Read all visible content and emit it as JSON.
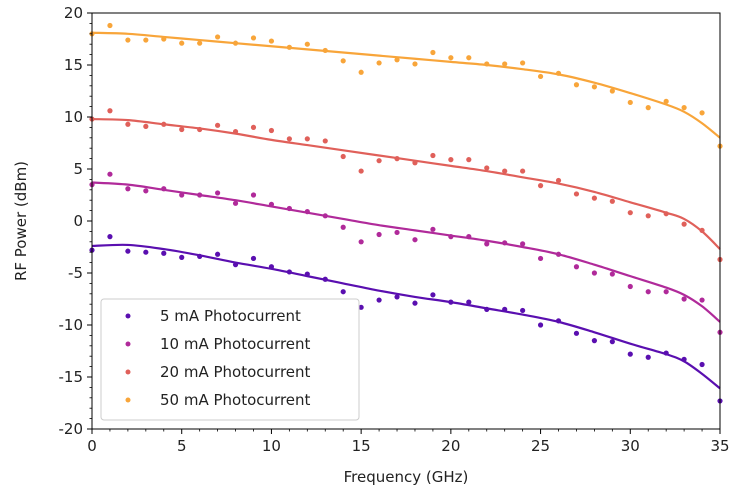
{
  "chart_data": {
    "type": "scatter",
    "xlabel": "Frequency (GHz)",
    "ylabel": "RF Power (dBm)",
    "xlim": [
      0,
      35
    ],
    "ylim": [
      -20,
      20
    ],
    "xticks": [
      0,
      5,
      10,
      15,
      20,
      25,
      30,
      35
    ],
    "yticks": [
      -20,
      -15,
      -10,
      -5,
      0,
      5,
      10,
      15,
      20
    ],
    "grid": false,
    "legend_placement": "lower-left",
    "series": [
      {
        "name": "5 mA Photocurrent",
        "color": "#5a0fb0",
        "x": [
          0,
          1,
          2,
          3,
          4,
          5,
          6,
          7,
          8,
          9,
          10,
          11,
          12,
          13,
          14,
          15,
          16,
          17,
          18,
          19,
          20,
          21,
          22,
          23,
          24,
          25,
          26,
          27,
          28,
          29,
          30,
          31,
          32,
          33,
          34,
          35
        ],
        "y": [
          -2.8,
          -1.5,
          -2.9,
          -3.0,
          -3.1,
          -3.5,
          -3.4,
          -3.2,
          -4.2,
          -3.6,
          -4.4,
          -4.9,
          -5.1,
          -5.6,
          -6.8,
          -8.3,
          -7.6,
          -7.3,
          -7.9,
          -7.1,
          -7.8,
          -7.8,
          -8.5,
          -8.5,
          -8.6,
          -10.0,
          -9.6,
          -10.8,
          -11.5,
          -11.6,
          -12.8,
          -13.1,
          -12.7,
          -13.3,
          -13.8,
          -17.3
        ],
        "fit": [
          [
            0,
            -2.4
          ],
          [
            2,
            -2.3
          ],
          [
            4,
            -2.7
          ],
          [
            6,
            -3.3
          ],
          [
            8,
            -4.0
          ],
          [
            10,
            -4.6
          ],
          [
            12,
            -5.3
          ],
          [
            14,
            -6.0
          ],
          [
            16,
            -6.7
          ],
          [
            18,
            -7.3
          ],
          [
            20,
            -7.8
          ],
          [
            22,
            -8.4
          ],
          [
            24,
            -9.0
          ],
          [
            26,
            -9.7
          ],
          [
            28,
            -10.7
          ],
          [
            30,
            -11.8
          ],
          [
            32,
            -12.8
          ],
          [
            33,
            -13.5
          ],
          [
            34,
            -14.7
          ],
          [
            35,
            -16.1
          ]
        ]
      },
      {
        "name": "10 mA Photocurrent",
        "color": "#b02a9a",
        "x": [
          0,
          1,
          2,
          3,
          4,
          5,
          6,
          7,
          8,
          9,
          10,
          11,
          12,
          13,
          14,
          15,
          16,
          17,
          18,
          19,
          20,
          21,
          22,
          23,
          24,
          25,
          26,
          27,
          28,
          29,
          30,
          31,
          32,
          33,
          34,
          35
        ],
        "y": [
          3.5,
          4.5,
          3.1,
          2.9,
          3.1,
          2.5,
          2.5,
          2.7,
          1.7,
          2.5,
          1.6,
          1.2,
          0.9,
          0.5,
          -0.6,
          -2.0,
          -1.3,
          -1.1,
          -1.8,
          -0.8,
          -1.5,
          -1.5,
          -2.2,
          -2.1,
          -2.2,
          -3.6,
          -3.2,
          -4.4,
          -5.0,
          -5.1,
          -6.3,
          -6.8,
          -6.8,
          -7.5,
          -7.6,
          -10.7
        ],
        "fit": [
          [
            0,
            3.7
          ],
          [
            2,
            3.5
          ],
          [
            4,
            3.0
          ],
          [
            6,
            2.5
          ],
          [
            8,
            2.0
          ],
          [
            10,
            1.4
          ],
          [
            12,
            0.8
          ],
          [
            14,
            0.2
          ],
          [
            16,
            -0.4
          ],
          [
            18,
            -0.9
          ],
          [
            20,
            -1.4
          ],
          [
            22,
            -1.9
          ],
          [
            24,
            -2.5
          ],
          [
            26,
            -3.2
          ],
          [
            28,
            -4.2
          ],
          [
            30,
            -5.3
          ],
          [
            32,
            -6.4
          ],
          [
            33,
            -7.1
          ],
          [
            34,
            -8.2
          ],
          [
            35,
            -9.7
          ]
        ]
      },
      {
        "name": "20 mA Photocurrent",
        "color": "#e0605a",
        "x": [
          0,
          1,
          2,
          3,
          4,
          5,
          6,
          7,
          8,
          9,
          10,
          11,
          12,
          13,
          14,
          15,
          16,
          17,
          18,
          19,
          20,
          21,
          22,
          23,
          24,
          25,
          26,
          27,
          28,
          29,
          30,
          31,
          32,
          33,
          34,
          35
        ],
        "y": [
          9.8,
          10.6,
          9.3,
          9.1,
          9.3,
          8.8,
          8.8,
          9.2,
          8.6,
          9.0,
          8.7,
          7.9,
          7.9,
          7.7,
          6.2,
          4.8,
          5.8,
          6.0,
          5.6,
          6.3,
          5.9,
          5.9,
          5.1,
          4.8,
          4.8,
          3.4,
          3.9,
          2.6,
          2.2,
          1.9,
          0.8,
          0.5,
          0.7,
          -0.3,
          -0.9,
          -3.7
        ],
        "fit": [
          [
            0,
            9.8
          ],
          [
            2,
            9.7
          ],
          [
            4,
            9.3
          ],
          [
            6,
            8.9
          ],
          [
            8,
            8.4
          ],
          [
            10,
            7.8
          ],
          [
            12,
            7.3
          ],
          [
            14,
            6.8
          ],
          [
            16,
            6.3
          ],
          [
            18,
            5.8
          ],
          [
            20,
            5.3
          ],
          [
            22,
            4.8
          ],
          [
            24,
            4.2
          ],
          [
            26,
            3.6
          ],
          [
            28,
            2.8
          ],
          [
            30,
            1.8
          ],
          [
            32,
            0.8
          ],
          [
            33,
            0.2
          ],
          [
            34,
            -1.0
          ],
          [
            35,
            -2.7
          ]
        ]
      },
      {
        "name": "50 mA Photocurrent",
        "color": "#f8a53a",
        "x": [
          0,
          1,
          2,
          3,
          4,
          5,
          6,
          7,
          8,
          9,
          10,
          11,
          12,
          13,
          14,
          15,
          16,
          17,
          18,
          19,
          20,
          21,
          22,
          23,
          24,
          25,
          26,
          27,
          28,
          29,
          30,
          31,
          32,
          33,
          34,
          35
        ],
        "y": [
          18.0,
          18.8,
          17.4,
          17.4,
          17.5,
          17.1,
          17.1,
          17.7,
          17.1,
          17.6,
          17.3,
          16.7,
          17.0,
          16.4,
          15.4,
          14.3,
          15.2,
          15.5,
          15.1,
          16.2,
          15.7,
          15.7,
          15.1,
          15.1,
          15.2,
          13.9,
          14.2,
          13.1,
          12.9,
          12.5,
          11.4,
          10.9,
          11.5,
          10.9,
          10.4,
          7.2
        ],
        "fit": [
          [
            0,
            18.1
          ],
          [
            2,
            18.0
          ],
          [
            4,
            17.7
          ],
          [
            6,
            17.4
          ],
          [
            8,
            17.1
          ],
          [
            10,
            16.8
          ],
          [
            12,
            16.5
          ],
          [
            14,
            16.2
          ],
          [
            16,
            15.9
          ],
          [
            18,
            15.6
          ],
          [
            20,
            15.3
          ],
          [
            22,
            15.0
          ],
          [
            24,
            14.6
          ],
          [
            26,
            14.1
          ],
          [
            28,
            13.3
          ],
          [
            30,
            12.3
          ],
          [
            32,
            11.2
          ],
          [
            33,
            10.5
          ],
          [
            34,
            9.4
          ],
          [
            35,
            8.0
          ]
        ]
      }
    ]
  }
}
